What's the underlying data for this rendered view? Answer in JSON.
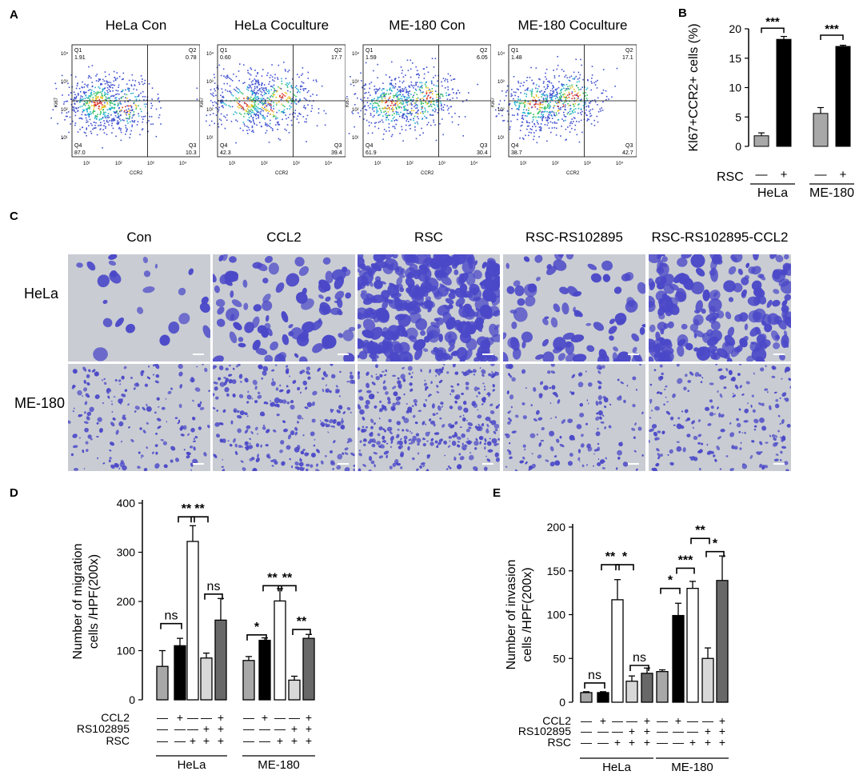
{
  "panels": {
    "a": "A",
    "b": "B",
    "c": "C",
    "d": "D",
    "e": "E"
  },
  "flow": {
    "plots": [
      {
        "title": "HeLa Con",
        "q1": "1.91",
        "q2": "0.78",
        "q3": "10.3",
        "q4": "87.0"
      },
      {
        "title": "HeLa Coculture",
        "q1": "0.60",
        "q2": "17.7",
        "q3": "39.4",
        "q4": "42.3"
      },
      {
        "title": "ME-180 Con",
        "q1": "1.59",
        "q2": "6.05",
        "q3": "30.4",
        "q4": "61.9"
      },
      {
        "title": "ME-180 Coculture",
        "q1": "1.48",
        "q2": "17.1",
        "q3": "42.7",
        "q4": "38.7"
      }
    ],
    "quad_names": {
      "q1": "Q1",
      "q2": "Q2",
      "q3": "Q3",
      "q4": "Q4"
    },
    "xlabel": "CCR2",
    "ylabel": "Ki67",
    "ticks": [
      "10¹",
      "10²",
      "10³",
      "10⁴"
    ]
  },
  "micro": {
    "columns": [
      "Con",
      "CCL2",
      "RSC",
      "RSC-RS102895",
      "RSC-RS102895-CCL2"
    ],
    "rows": [
      "HeLa",
      "ME-180"
    ],
    "colors": {
      "background": "#c9cdd3",
      "cells": "#4b48c8"
    }
  },
  "chart_data": [
    {
      "id": "B",
      "type": "bar",
      "ylabel": "Kl67+CCR2+ cells (%)",
      "ylim": [
        0,
        20
      ],
      "yticks": [
        0,
        5,
        10,
        15,
        20
      ],
      "row_label": "RSC",
      "signs": [
        "—",
        "+",
        "—",
        "+"
      ],
      "groups": [
        "HeLa",
        "ME-180"
      ],
      "values": [
        1.8,
        18.2,
        5.6,
        17.0
      ],
      "errors": [
        0.5,
        0.5,
        1.0,
        0.2
      ],
      "colors": [
        "#a8a8a8",
        "#000000",
        "#a8a8a8",
        "#000000"
      ],
      "sig": [
        {
          "from": 0,
          "to": 1,
          "label": "***"
        },
        {
          "from": 2,
          "to": 3,
          "label": "***"
        }
      ]
    },
    {
      "id": "D",
      "type": "bar",
      "ylabel_lines": [
        "Number of migration",
        "cells /HPF(200x)"
      ],
      "ylim": [
        0,
        400
      ],
      "yticks": [
        0,
        100,
        200,
        300,
        400
      ],
      "groups": [
        "HeLa",
        "ME-180"
      ],
      "factors": [
        {
          "name": "CCL2",
          "signs": [
            "—",
            "+",
            "—",
            "—",
            "+",
            "—",
            "+",
            "—",
            "—",
            "+"
          ]
        },
        {
          "name": "RS102895",
          "signs": [
            "—",
            "—",
            "—",
            "+",
            "+",
            "—",
            "—",
            "—",
            "+",
            "+"
          ]
        },
        {
          "name": "RSC",
          "signs": [
            "—",
            "—",
            "+",
            "+",
            "+",
            "—",
            "—",
            "+",
            "+",
            "+"
          ]
        }
      ],
      "values": [
        68,
        110,
        322,
        85,
        162,
        80,
        121,
        201,
        40,
        125
      ],
      "errors": [
        32,
        15,
        32,
        10,
        44,
        8,
        5,
        25,
        8,
        8
      ],
      "colors": [
        "#a8a8a8",
        "#000000",
        "#ffffff",
        "#d8d8d8",
        "#686868",
        "#a8a8a8",
        "#000000",
        "#ffffff",
        "#d8d8d8",
        "#686868"
      ],
      "sig": [
        {
          "from": 0,
          "to": 1,
          "label": "ns",
          "y": 155
        },
        {
          "from": 1,
          "to": 2,
          "label": "**",
          "y": 372
        },
        {
          "from": 2,
          "to": 3,
          "label": "**",
          "y": 372
        },
        {
          "from": 3,
          "to": 4,
          "label": "ns",
          "y": 215
        },
        {
          "from": 5,
          "to": 6,
          "label": "*",
          "y": 132
        },
        {
          "from": 6,
          "to": 7,
          "label": "**",
          "y": 232
        },
        {
          "from": 7,
          "to": 8,
          "label": "**",
          "y": 232
        },
        {
          "from": 8,
          "to": 9,
          "label": "**",
          "y": 143
        }
      ]
    },
    {
      "id": "E",
      "type": "bar",
      "ylabel_lines": [
        "Number of invasion",
        "cells /HPF(200x)"
      ],
      "ylim": [
        0,
        200
      ],
      "yticks": [
        0,
        50,
        100,
        150,
        200
      ],
      "groups": [
        "HeLa",
        "ME-180"
      ],
      "factors": [
        {
          "name": "CCL2",
          "signs": [
            "—",
            "+",
            "—",
            "—",
            "+",
            "—",
            "+",
            "—",
            "—",
            "+"
          ]
        },
        {
          "name": "RS102895",
          "signs": [
            "—",
            "—",
            "—",
            "+",
            "+",
            "—",
            "—",
            "—",
            "+",
            "+"
          ]
        },
        {
          "name": "RSC",
          "signs": [
            "—",
            "—",
            "+",
            "+",
            "+",
            "—",
            "—",
            "+",
            "+",
            "+"
          ]
        }
      ],
      "values": [
        11,
        11,
        117,
        24,
        33,
        35,
        99,
        130,
        50,
        139
      ],
      "errors": [
        1,
        1,
        23,
        6,
        6,
        2,
        14,
        8,
        12,
        28
      ],
      "colors": [
        "#a8a8a8",
        "#000000",
        "#ffffff",
        "#d8d8d8",
        "#686868",
        "#a8a8a8",
        "#000000",
        "#ffffff",
        "#d8d8d8",
        "#686868"
      ],
      "sig": [
        {
          "from": 0,
          "to": 1,
          "label": "ns",
          "y": 22
        },
        {
          "from": 1,
          "to": 2,
          "label": "**",
          "y": 157
        },
        {
          "from": 2,
          "to": 3,
          "label": "*",
          "y": 157
        },
        {
          "from": 3,
          "to": 4,
          "label": "ns",
          "y": 42
        },
        {
          "from": 5,
          "to": 6,
          "label": "*",
          "y": 130
        },
        {
          "from": 6,
          "to": 7,
          "label": "***",
          "y": 153
        },
        {
          "from": 7,
          "to": 8,
          "label": "**",
          "y": 187
        },
        {
          "from": 8,
          "to": 9,
          "label": "*",
          "y": 172
        }
      ]
    }
  ]
}
